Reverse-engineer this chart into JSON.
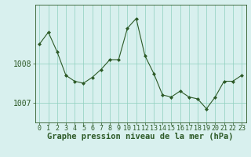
{
  "x": [
    0,
    1,
    2,
    3,
    4,
    5,
    6,
    7,
    8,
    9,
    10,
    11,
    12,
    13,
    14,
    15,
    16,
    17,
    18,
    19,
    20,
    21,
    22,
    23
  ],
  "y": [
    1008.5,
    1008.8,
    1008.3,
    1007.7,
    1007.55,
    1007.5,
    1007.65,
    1007.85,
    1008.1,
    1008.1,
    1008.9,
    1009.15,
    1008.2,
    1007.75,
    1007.2,
    1007.15,
    1007.3,
    1007.15,
    1007.1,
    1006.85,
    1007.15,
    1007.55,
    1007.55,
    1007.7
  ],
  "line_color": "#2d5a27",
  "marker_color": "#2d5a27",
  "bg_color": "#d8f0ee",
  "grid_color": "#8ecfbe",
  "axis_color": "#2d5a27",
  "xlabel": "Graphe pression niveau de la mer (hPa)",
  "ylabel_ticks": [
    1007,
    1008
  ],
  "ylim": [
    1006.5,
    1009.5
  ],
  "xlim": [
    -0.5,
    23.5
  ],
  "xlabel_fontsize": 7.5,
  "tick_fontsize": 7.0,
  "xtick_fontsize": 6.0
}
